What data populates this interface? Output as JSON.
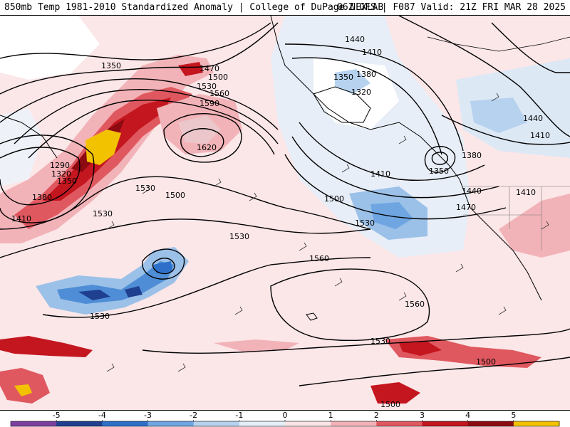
{
  "header": {
    "title": "850mb Temp 1981-2010 Standardized Anomaly | College of DuPage NEXLAB",
    "run_info": "06Z GFS | F087 Valid: 21Z FRI MAR 28 2025"
  },
  "map": {
    "contour_labels": [
      {
        "id": "c1350a",
        "text": "1350"
      },
      {
        "id": "c1470a",
        "text": "1470"
      },
      {
        "id": "c1500a",
        "text": "1500"
      },
      {
        "id": "c1530a",
        "text": "1530"
      },
      {
        "id": "c1560a",
        "text": "1560"
      },
      {
        "id": "c1590",
        "text": "1590"
      },
      {
        "id": "c1620",
        "text": "1620"
      },
      {
        "id": "c1290",
        "text": "1290"
      },
      {
        "id": "c1320a",
        "text": "1320"
      },
      {
        "id": "c1350b",
        "text": "1350"
      },
      {
        "id": "c1380a",
        "text": "1380"
      },
      {
        "id": "c1410a",
        "text": "1410"
      },
      {
        "id": "c1530b",
        "text": "1530"
      },
      {
        "id": "c1500b",
        "text": "1500"
      },
      {
        "id": "c1530c",
        "text": "1530"
      },
      {
        "id": "c1530d",
        "text": "1530"
      },
      {
        "id": "c1530e",
        "text": "1530"
      },
      {
        "id": "c1440a",
        "text": "1440"
      },
      {
        "id": "c1410b",
        "text": "1410"
      },
      {
        "id": "c1350c",
        "text": "1350"
      },
      {
        "id": "c1380b",
        "text": "1380"
      },
      {
        "id": "c1320b",
        "text": "1320"
      },
      {
        "id": "c1410c",
        "text": "1410"
      },
      {
        "id": "c1350d",
        "text": "1350"
      },
      {
        "id": "c1380c",
        "text": "1380"
      },
      {
        "id": "c1440b",
        "text": "1440"
      },
      {
        "id": "c1410d",
        "text": "1410"
      },
      {
        "id": "c1440c",
        "text": "1440"
      },
      {
        "id": "c1410e",
        "text": "1410"
      },
      {
        "id": "c1470b",
        "text": "1470"
      },
      {
        "id": "c1500c",
        "text": "1500"
      },
      {
        "id": "c1530f",
        "text": "1530"
      },
      {
        "id": "c1560b",
        "text": "1560"
      },
      {
        "id": "c1560c",
        "text": "1560"
      },
      {
        "id": "c1530g",
        "text": "1530"
      },
      {
        "id": "c1500d",
        "text": "1500"
      },
      {
        "id": "c1500e",
        "text": "1500"
      }
    ]
  },
  "colorbar": {
    "ticks": [
      "-5",
      "-4",
      "-3",
      "-2",
      "-1",
      "0",
      "1",
      "2",
      "3",
      "4",
      "5"
    ],
    "colors": [
      "#7b3fa0",
      "#1f3f8f",
      "#2d6fc9",
      "#6fa6e2",
      "#b7d2ef",
      "#e6eef8",
      "#fbe4e6",
      "#f2b3b8",
      "#e0585f",
      "#c4161f",
      "#8c0a10",
      "#f2c200"
    ]
  }
}
